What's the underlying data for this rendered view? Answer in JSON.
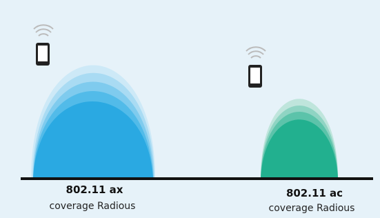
{
  "left": {
    "standard": "802.11 ax",
    "caption": "coverage Radious"
  },
  "right": {
    "standard": "802.11 ac",
    "caption": "coverage Radious"
  }
}
